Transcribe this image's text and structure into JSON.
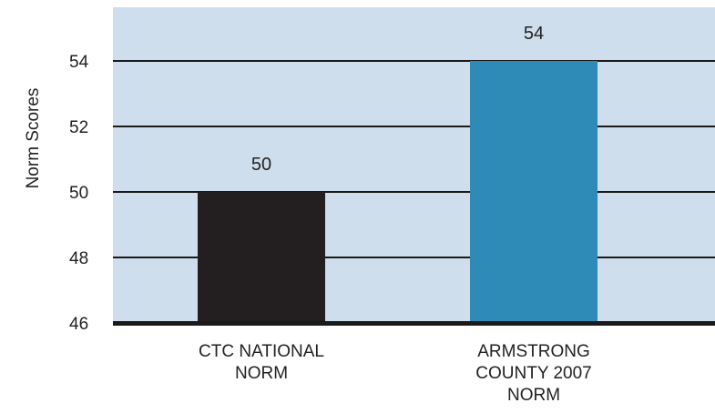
{
  "chart_data": {
    "type": "bar",
    "title": "",
    "xlabel": "",
    "ylabel": "Norm Scores",
    "ylim": [
      46,
      55.5
    ],
    "yticks": [
      46,
      48,
      50,
      52,
      54
    ],
    "grid": true,
    "legend": "none",
    "categories": [
      [
        "CTC NATIONAL",
        "NORM"
      ],
      [
        "ARMSTRONG",
        "COUNTY  2007",
        "NORM"
      ]
    ],
    "values": [
      50,
      54
    ],
    "value_labels": [
      "50",
      "54"
    ],
    "colors": [
      "#231f20",
      "#2e8bb7"
    ],
    "plot_background": "#cfdeec",
    "gridline_color": "#1a1a1a"
  }
}
